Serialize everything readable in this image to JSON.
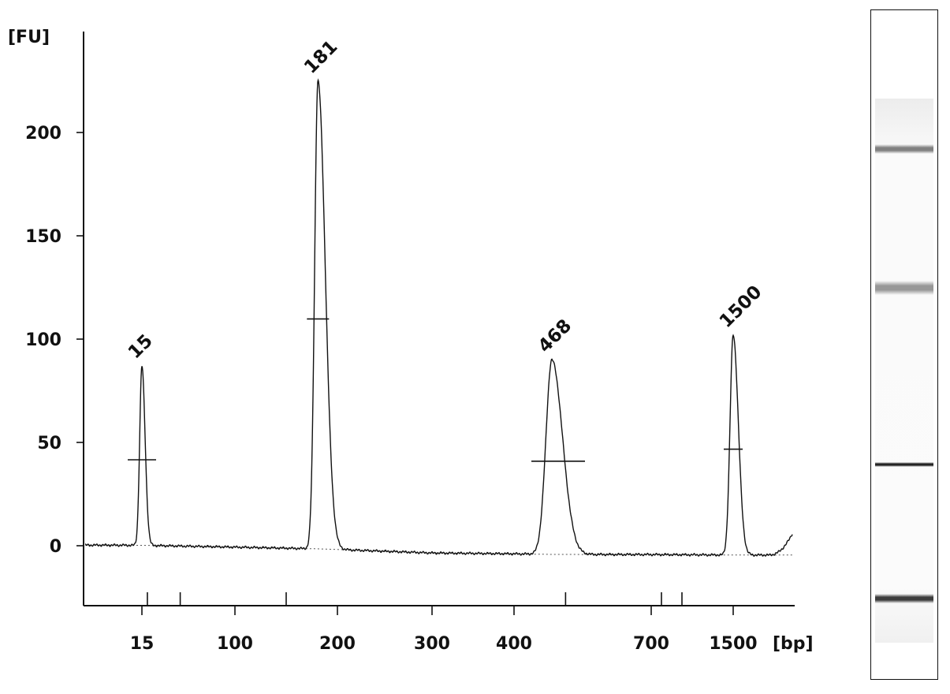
{
  "chart_data": {
    "type": "line",
    "ylabel": "[FU]",
    "xlabel": "[bp]",
    "ylim": [
      -30,
      250
    ],
    "yticks": [
      0,
      50,
      100,
      150,
      200
    ],
    "xticks_labeled": [
      "15",
      "100",
      "200",
      "300",
      "400",
      "700",
      "1500"
    ],
    "x_axis_scale": "nonlinear (electropherogram migration scale)",
    "peaks": [
      {
        "label": "15",
        "size_bp": 15,
        "height_fu": 87
      },
      {
        "label": "181",
        "size_bp": 181,
        "height_fu": 225
      },
      {
        "label": "468",
        "size_bp": 468,
        "height_fu": 90
      },
      {
        "label": "1500",
        "size_bp": 1500,
        "height_fu": 102
      }
    ],
    "series": [
      {
        "values_note": "single FU trace with baseline ~0 FU, four peaks",
        "color": "#111111"
      }
    ],
    "grid": false
  },
  "gel": {
    "bands": [
      {
        "size_bp": 1500,
        "intensity": 0.55
      },
      {
        "size_bp": 468,
        "intensity": 0.45
      },
      {
        "size_bp": 181,
        "intensity": 0.95
      },
      {
        "size_bp": 15,
        "intensity": 0.85
      }
    ]
  }
}
